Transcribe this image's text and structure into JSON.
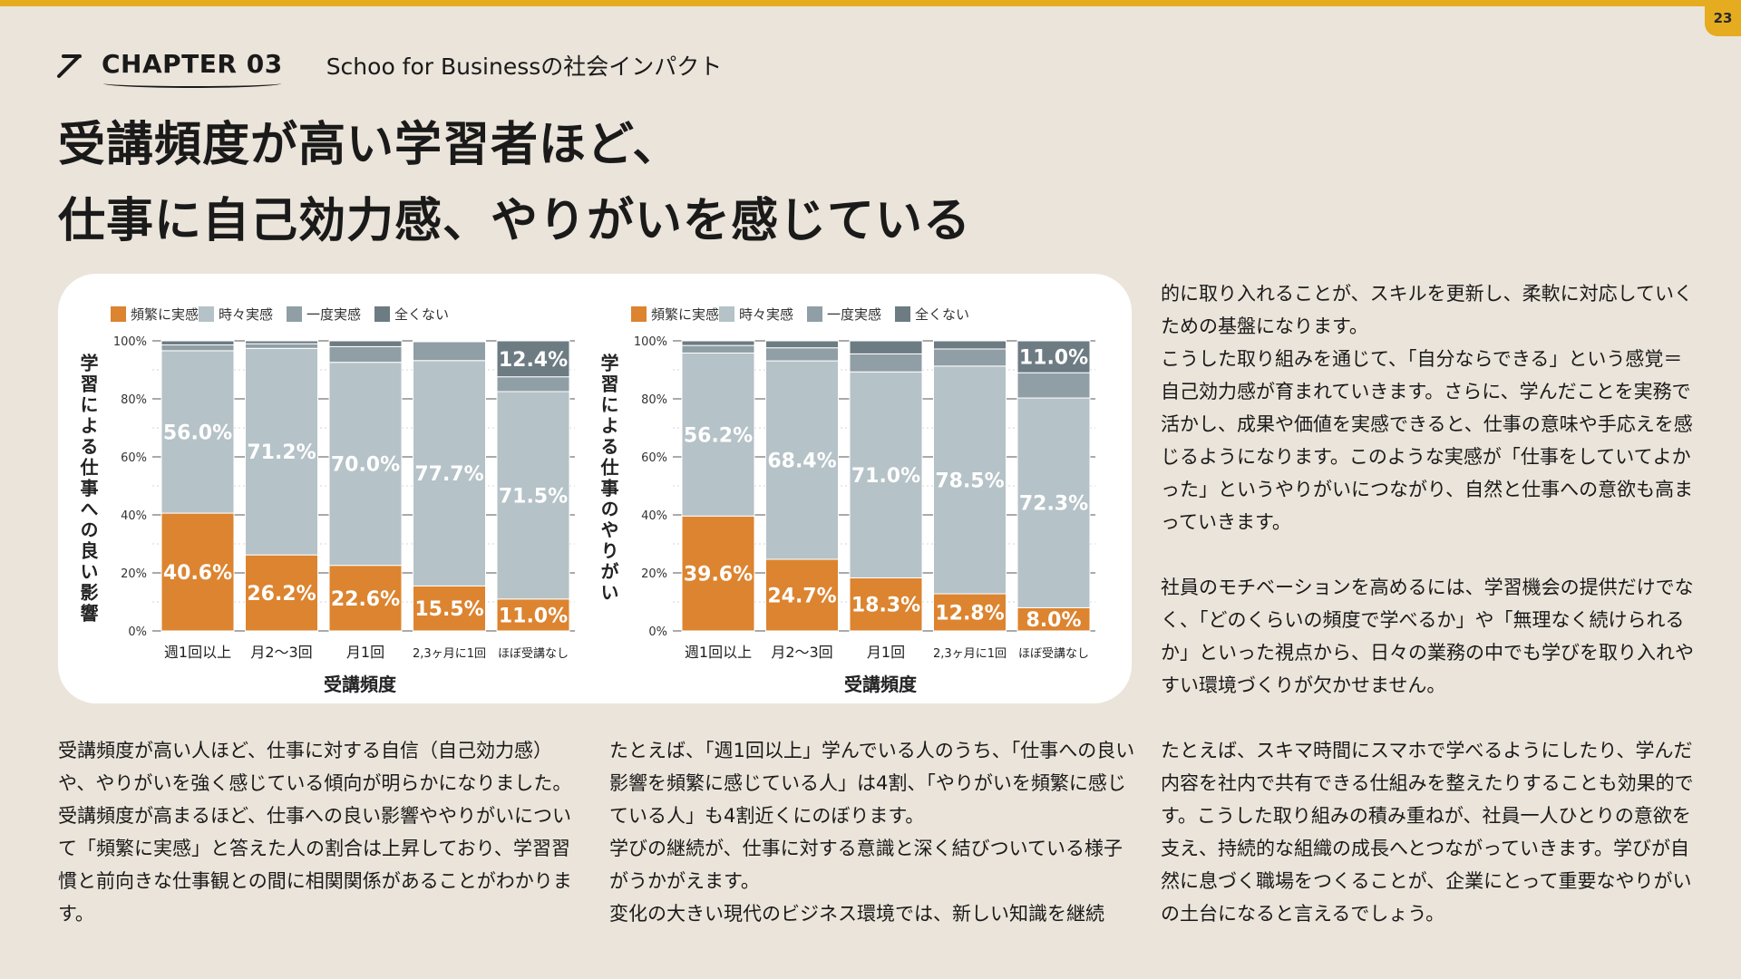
{
  "page_number": "23",
  "chapter": {
    "label": "CHAPTER 03",
    "subtitle": "Schoo for Businessの社会インパクト"
  },
  "headline": {
    "line1": "受講頻度が高い学習者ほど、",
    "line2": "仕事に自己効力感、やりがいを感じている"
  },
  "colors": {
    "frequent": "#dc8430",
    "sometimes": "#b5c2c7",
    "once": "#909ea5",
    "never": "#6d7b83",
    "accent": "#e6ac1f"
  },
  "chart_data": [
    {
      "type": "bar",
      "stacked": true,
      "title": "",
      "ylabel": "学習による仕事への良い影響",
      "xlabel": "受講頻度",
      "ylim": [
        0,
        100
      ],
      "yticks": [
        "0%",
        "20%",
        "40%",
        "60%",
        "80%",
        "100%"
      ],
      "legend": [
        "頻繁に実感",
        "時々実感",
        "一度実感",
        "全くない"
      ],
      "legend_position": "top-left",
      "categories": [
        "週1回以上",
        "月2〜3回",
        "月1回",
        "2,3ヶ月に1回",
        "ほぼ受講なし"
      ],
      "series": [
        {
          "name": "頻繁に実感",
          "values": [
            40.6,
            26.2,
            22.6,
            15.5,
            11.0
          ],
          "labels": [
            "40.6%",
            "26.2%",
            "22.6%",
            "15.5%",
            "11.0%"
          ]
        },
        {
          "name": "時々実感",
          "values": [
            56.0,
            71.2,
            70.0,
            77.7,
            71.5
          ],
          "labels": [
            "56.0%",
            "71.2%",
            "70.0%",
            "77.7%",
            "71.5%"
          ]
        },
        {
          "name": "一度実感",
          "values": [
            2.0,
            1.6,
            5.4,
            6.5,
            5.1
          ]
        },
        {
          "name": "全くない",
          "values": [
            1.4,
            1.0,
            2.0,
            0.3,
            12.4
          ],
          "labels": [
            "",
            "",
            "",
            "",
            "12.4%"
          ]
        }
      ]
    },
    {
      "type": "bar",
      "stacked": true,
      "title": "",
      "ylabel": "学習による仕事のやりがい",
      "xlabel": "受講頻度",
      "ylim": [
        0,
        100
      ],
      "yticks": [
        "0%",
        "20%",
        "40%",
        "60%",
        "80%",
        "100%"
      ],
      "legend": [
        "頻繁に実感",
        "時々実感",
        "一度実感",
        "全くない"
      ],
      "legend_position": "top-left",
      "categories": [
        "週1回以上",
        "月2〜3回",
        "月1回",
        "2,3ヶ月に1回",
        "ほぼ受講なし"
      ],
      "series": [
        {
          "name": "頻繁に実感",
          "values": [
            39.6,
            24.7,
            18.3,
            12.8,
            8.0
          ],
          "labels": [
            "39.6%",
            "24.7%",
            "18.3%",
            "12.8%",
            "8.0%"
          ]
        },
        {
          "name": "時々実感",
          "values": [
            56.2,
            68.4,
            71.0,
            78.5,
            72.3
          ],
          "labels": [
            "56.2%",
            "68.4%",
            "71.0%",
            "78.5%",
            "72.3%"
          ]
        },
        {
          "name": "一度実感",
          "values": [
            2.6,
            4.5,
            6.2,
            5.9,
            8.7
          ]
        },
        {
          "name": "全くない",
          "values": [
            1.6,
            2.4,
            4.5,
            2.8,
            11.0
          ],
          "labels": [
            "",
            "",
            "",
            "",
            "11.0%"
          ]
        }
      ]
    }
  ],
  "body": {
    "right_top": [
      "的に取り入れることが、スキルを更新し、柔軟に対応していくための基盤になります。",
      "こうした取り組みを通じて、「自分ならできる」という感覚＝自己効力感が育まれていきます。さらに、学んだことを実務で活かし、成果や価値を実感できると、仕事の意味や手応えを感じるようになります。このような実感が「仕事をしていてよかった」というやりがいにつながり、自然と仕事への意欲も高まっていきます。",
      "社員のモチベーションを高めるには、学習機会の提供だけでなく、「どのくらいの頻度で学べるか」や「無理なく続けられるか」といった視点から、日々の業務の中でも学びを取り入れやすい環境づくりが欠かせません。"
    ],
    "col1": [
      "受講頻度が高い人ほど、仕事に対する自信（自己効力感）や、やりがいを強く感じている傾向が明らかになりました。受講頻度が高まるほど、仕事への良い影響ややりがいについて「頻繁に実感」と答えた人の割合は上昇しており、学習習慣と前向きな仕事観との間に相関関係があることがわかります。"
    ],
    "col2": [
      "たとえば、「週1回以上」学んでいる人のうち、「仕事への良い影響を頻繁に感じている人」は4割、「やりがいを頻繁に感じている人」も4割近くにのぼります。",
      "学びの継続が、仕事に対する意識と深く結びついている様子がうかがえます。",
      "変化の大きい現代のビジネス環境では、新しい知識を継続"
    ],
    "col3": [
      "たとえば、スキマ時間にスマホで学べるようにしたり、学んだ内容を社内で共有できる仕組みを整えたりすることも効果的です。こうした取り組みの積み重ねが、社員一人ひとりの意欲を支え、持続的な組織の成長へとつながっていきます。学びが自然に息づく職場をつくることが、企業にとって重要なやりがいの土台になると言えるでしょう。"
    ]
  }
}
